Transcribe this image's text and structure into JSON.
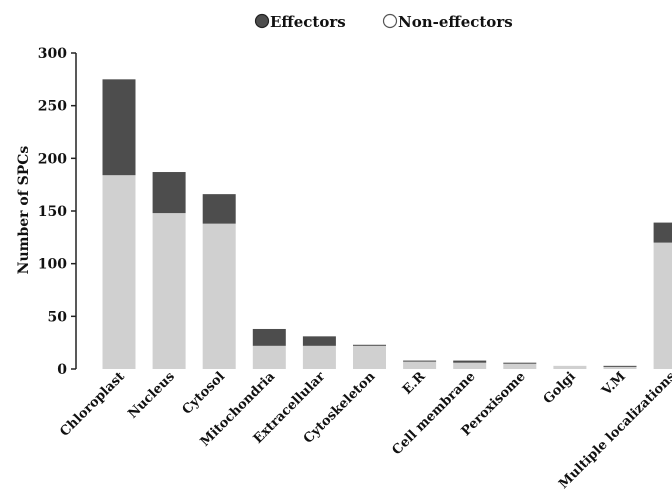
{
  "chart_data": {
    "type": "bar",
    "stacked": true,
    "title": "",
    "xlabel": "",
    "ylabel": "Number of SPCs",
    "ylim": [
      0,
      300
    ],
    "yticks": [
      0,
      50,
      100,
      150,
      200,
      250,
      300
    ],
    "grid": false,
    "legend_position": "top",
    "categories": [
      "Chloroplast",
      "Nucleus",
      "Cytosol",
      "Mitochondria",
      "Extracellular",
      "Cytoskeleton",
      "E.R",
      "Cell membrane",
      "Peroxisome",
      "Golgi",
      "V.M",
      "Multiple localizations"
    ],
    "series": [
      {
        "name": "Non-effectors",
        "color": "#d0d0d0",
        "values": [
          184,
          148,
          138,
          22,
          22,
          22,
          7,
          6,
          5,
          3,
          2,
          120
        ]
      },
      {
        "name": "Effectors",
        "color": "#4d4d4d",
        "values": [
          91,
          39,
          28,
          16,
          9,
          1,
          1,
          2,
          1,
          0,
          1,
          19
        ]
      }
    ]
  },
  "legend": [
    {
      "label": "Effectors",
      "icon": "filled-circle-icon",
      "color": "#4d4d4d"
    },
    {
      "label": "Non-effectors",
      "icon": "open-circle-icon",
      "color": "#d0d0d0"
    }
  ]
}
